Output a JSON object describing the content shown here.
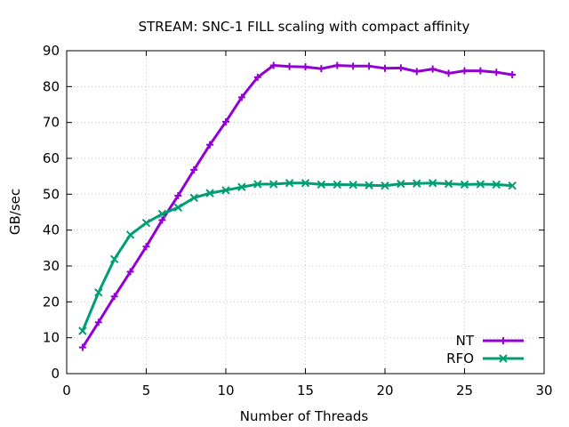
{
  "chart_data": {
    "type": "line",
    "title": "STREAM: SNC-1 FILL scaling with compact affinity",
    "xlabel": "Number of Threads",
    "ylabel": "GB/sec",
    "xlim": [
      0,
      30
    ],
    "ylim": [
      0,
      90
    ],
    "xticks": [
      0,
      5,
      10,
      15,
      20,
      25,
      30
    ],
    "yticks": [
      0,
      10,
      20,
      30,
      40,
      50,
      60,
      70,
      80,
      90
    ],
    "grid": true,
    "legend_position": "bottom-right",
    "x": [
      1,
      2,
      3,
      4,
      5,
      6,
      7,
      8,
      9,
      10,
      11,
      12,
      13,
      14,
      15,
      16,
      17,
      18,
      19,
      20,
      21,
      22,
      23,
      24,
      25,
      26,
      27,
      28
    ],
    "series": [
      {
        "name": "NT",
        "color": "#9400d3",
        "marker": "plus",
        "values": [
          7.3,
          14.3,
          21.5,
          28.4,
          35.4,
          42.8,
          49.6,
          56.8,
          63.8,
          70.2,
          77.0,
          82.6,
          85.9,
          85.6,
          85.5,
          85.0,
          85.9,
          85.7,
          85.7,
          85.1,
          85.2,
          84.2,
          84.9,
          83.7,
          84.4,
          84.4,
          84.0,
          83.3
        ]
      },
      {
        "name": "RFO",
        "color": "#009e73",
        "marker": "cross",
        "values": [
          11.9,
          22.6,
          31.9,
          38.7,
          42.0,
          44.5,
          46.3,
          49.0,
          50.3,
          51.1,
          52.0,
          52.8,
          52.8,
          53.1,
          53.1,
          52.7,
          52.7,
          52.6,
          52.5,
          52.4,
          52.9,
          53.0,
          53.1,
          52.9,
          52.7,
          52.8,
          52.7,
          52.4
        ]
      }
    ]
  }
}
